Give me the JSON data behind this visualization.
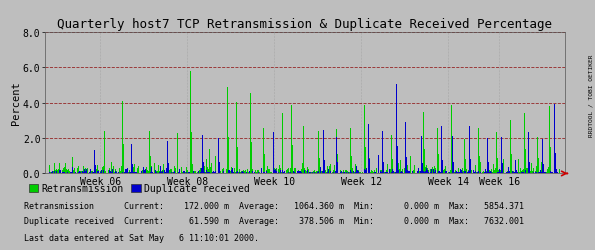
{
  "title": "Quarterly host7 TCP Retransmission & Duplicate Received Percentage",
  "ylabel": "Percent",
  "ylim": [
    0.0,
    8.0
  ],
  "yticks": [
    0.0,
    2.0,
    4.0,
    6.0,
    8.0
  ],
  "x_week_labels": [
    "Week 06",
    "Week 08",
    "Week 10",
    "Week 12",
    "Week 14",
    "Week 16"
  ],
  "bg_color": "#bebebe",
  "plot_bg_color": "#bebebe",
  "hgrid_color": "#8b0000",
  "vgrid_color": "#808080",
  "retrans_color": "#00cc00",
  "duprecv_color": "#0000cc",
  "title_color": "#000000",
  "legend_retrans": "Retransmission",
  "legend_duprecv": "Duplicate received",
  "stats_line1": "Retransmission      Current:    172.000 m  Average:   1064.360 m  Min:      0.000 m  Max:   5854.371",
  "stats_line2": "Duplicate received  Current:     61.590 m  Average:    378.506 m  Min:      0.000 m  Max:   7632.001",
  "stats_line3": "Last data entered at Sat May   6 11:10:01 2000.",
  "side_label": "RRDTOOL / TOBI OETIKER",
  "arrow_color": "#cc0000",
  "n_points": 560,
  "seed": 12345
}
